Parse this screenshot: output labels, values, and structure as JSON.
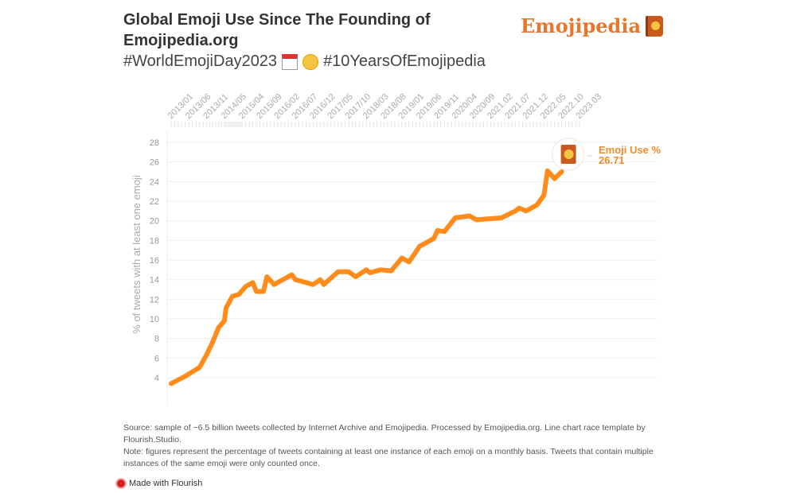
{
  "header": {
    "title": "Global Emoji Use Since The Founding of Emojipedia.org",
    "subtitle_part1": "#WorldEmojiDay2023",
    "subtitle_icons": [
      "calendar-icon",
      "partying-face-icon"
    ],
    "subtitle_part2": "#10YearsOfEmojipedia",
    "logo_text": "Emojipedia"
  },
  "chart_data": {
    "type": "line",
    "title": "Global Emoji Use Since The Founding of Emojipedia.org",
    "ylabel": "% of tweets with at least one emoji",
    "xlabel": "",
    "ylim": [
      4,
      28
    ],
    "yticks": [
      4,
      6,
      8,
      10,
      12,
      14,
      16,
      18,
      20,
      22,
      24,
      26,
      28
    ],
    "grid": true,
    "color": "#ff8c1a",
    "xtick_labels": [
      "2013/01",
      "2013/06",
      "2013/11",
      "2014/05",
      "2015/04",
      "2015/09",
      "2016/02",
      "2016/07",
      "2016/12",
      "2017/05",
      "2017/10",
      "2018/03",
      "2018/08",
      "2019/01",
      "2019/06",
      "2019/11",
      "2020/04",
      "2020/09",
      "2021.02",
      "2021.07",
      "2021.12",
      "2022.05",
      "2022.10",
      "2023.03"
    ],
    "series": [
      {
        "name": "Emoji Use %",
        "current_value": "26.71",
        "points": [
          [
            "2013-01",
            3.4
          ],
          [
            "2013-05",
            4.15
          ],
          [
            "2013-09",
            5.05
          ],
          [
            "2013-11",
            6.35
          ],
          [
            "2014-01",
            7.6
          ],
          [
            "2014-03",
            9.1
          ],
          [
            "2014-05",
            9.8
          ],
          [
            "2014-06",
            11.1
          ],
          [
            "2014-10",
            12.3
          ],
          [
            "2015-02",
            12.5
          ],
          [
            "2015-05",
            13.3
          ],
          [
            "2015-07",
            13.7
          ],
          [
            "2015-08",
            12.8
          ],
          [
            "2015-10",
            12.8
          ],
          [
            "2015-11",
            14.3
          ],
          [
            "2016-01",
            13.5
          ],
          [
            "2016-03",
            13.9
          ],
          [
            "2016-06",
            14.5
          ],
          [
            "2016-07",
            14.0
          ],
          [
            "2016-12",
            13.5
          ],
          [
            "2017-02",
            14.0
          ],
          [
            "2017-03",
            13.5
          ],
          [
            "2017-07",
            14.8
          ],
          [
            "2017-10",
            14.8
          ],
          [
            "2017-12",
            14.3
          ],
          [
            "2018-03",
            15.0
          ],
          [
            "2018-04",
            14.7
          ],
          [
            "2018-07",
            15.0
          ],
          [
            "2018-10",
            14.9
          ],
          [
            "2019-01",
            16.2
          ],
          [
            "2019-03",
            15.8
          ],
          [
            "2019-06",
            17.4
          ],
          [
            "2019-10",
            18.2
          ],
          [
            "2019-11",
            19.0
          ],
          [
            "2020-01",
            18.9
          ],
          [
            "2020-04",
            20.3
          ],
          [
            "2020-08",
            20.5
          ],
          [
            "2020-10",
            20.1
          ],
          [
            "2021-05",
            20.3
          ],
          [
            "2021-09",
            21.0
          ],
          [
            "2021-10",
            21.3
          ],
          [
            "2021-12",
            21.0
          ],
          [
            "2022-03",
            21.6
          ],
          [
            "2022-05",
            22.6
          ],
          [
            "2022-06",
            25.1
          ],
          [
            "2022-08",
            24.3
          ],
          [
            "2022-10",
            25.0
          ]
        ]
      }
    ]
  },
  "footer": {
    "source": "Source: sample of ~6.5 billion tweets collected by Internet Archive and Emojipedia. Processed by Emojipedia.org. Line chart race template by Flourish.Studio.",
    "note": "Note: figures represent the percentage of tweets containing at least one instance of each emoji on a monthly basis. Tweets that contain multiple instances of the same emoji were only counted once.",
    "made_with": "Made with Flourish"
  }
}
